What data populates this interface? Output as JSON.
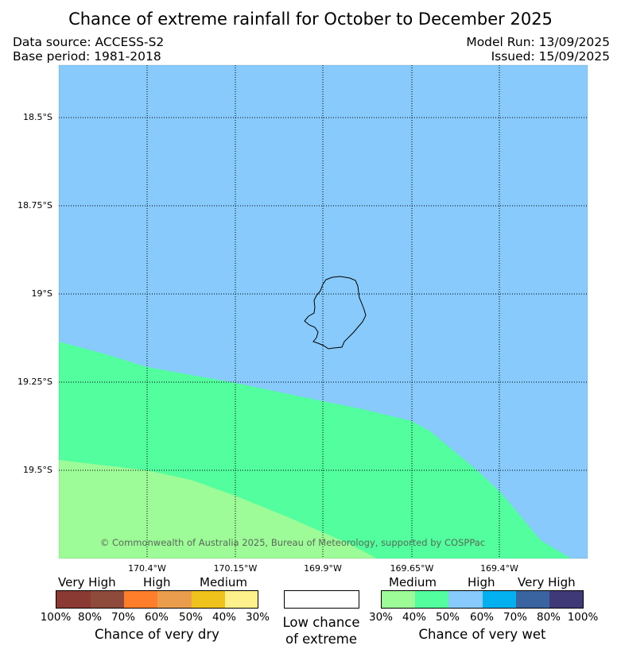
{
  "title": "Chance of extreme rainfall for October to December 2025",
  "data_source": "Data source: ACCESS-S2",
  "base_period": "Base period: 1981-2018",
  "model_run": "Model Run: 13/09/2025",
  "issued": "Issued: 15/09/2025",
  "map": {
    "lat_labels": [
      "18.5°S",
      "18.75°S",
      "19°S",
      "19.25°S",
      "19.5°S"
    ],
    "lon_labels": [
      "170.4°W",
      "170.15°W",
      "169.9°W",
      "169.65°W",
      "169.4°W"
    ],
    "colors": {
      "high_wet": "#87CAFB",
      "medium_wet_dark": "#52FE9D",
      "medium_wet_light": "#9DFB98",
      "island_outline": "#000000"
    },
    "copyright": "© Commonwealth of Australia 2025, Bureau of Meteorology, supported by COSPPac"
  },
  "legend": {
    "dry": {
      "categories": [
        "Very High",
        "High",
        "Medium"
      ],
      "colors": [
        "#8B3A33",
        "#8E4B3B",
        "#FE7E2A",
        "#EB9D4E",
        "#EFC31B",
        "#FEF08A"
      ],
      "percents": [
        "100%",
        "80%",
        "70%",
        "60%",
        "50%",
        "40%",
        "30%"
      ],
      "caption": "Chance of very dry"
    },
    "low": {
      "caption_line1": "Low chance",
      "caption_line2": "of extreme",
      "color": "#FFFFFF"
    },
    "wet": {
      "categories": [
        "Medium",
        "High",
        "Very High"
      ],
      "colors": [
        "#9DFB98",
        "#52FE9D",
        "#87CAFB",
        "#03B0EF",
        "#3A64A0",
        "#3F3A77"
      ],
      "percents": [
        "30%",
        "40%",
        "50%",
        "60%",
        "70%",
        "80%",
        "100%"
      ],
      "caption": "Chance of very wet"
    }
  }
}
